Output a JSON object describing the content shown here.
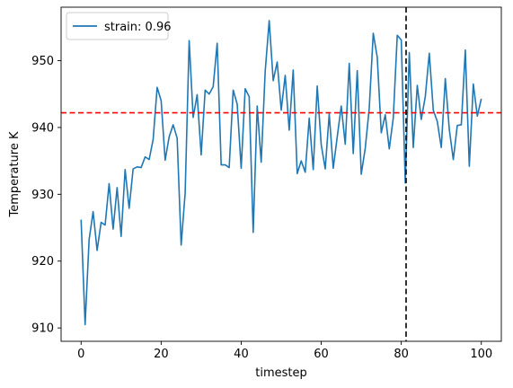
{
  "chart_data": {
    "type": "line",
    "title": "",
    "xlabel": "timestep",
    "ylabel": "Temperature K",
    "xlim": [
      -5,
      105
    ],
    "ylim": [
      908,
      958
    ],
    "xticks": [
      0,
      20,
      40,
      60,
      80,
      100
    ],
    "yticks": [
      910,
      920,
      930,
      940,
      950
    ],
    "grid": false,
    "legend_position": "top-left",
    "hline": {
      "y": 942.2,
      "color": "#ff0000",
      "style": "dashed"
    },
    "vline": {
      "x": 81.2,
      "color": "#000000",
      "style": "dashed"
    },
    "series": [
      {
        "name": "strain: 0.96",
        "color": "#1f77b4",
        "x": [
          0,
          1,
          2,
          3,
          4,
          5,
          6,
          7,
          8,
          9,
          10,
          11,
          12,
          13,
          14,
          15,
          16,
          17,
          18,
          19,
          20,
          21,
          22,
          23,
          24,
          25,
          26,
          27,
          28,
          29,
          30,
          31,
          32,
          33,
          34,
          35,
          36,
          37,
          38,
          39,
          40,
          41,
          42,
          43,
          44,
          45,
          46,
          47,
          48,
          49,
          50,
          51,
          52,
          53,
          54,
          55,
          56,
          57,
          58,
          59,
          60,
          61,
          62,
          63,
          64,
          65,
          66,
          67,
          68,
          69,
          70,
          71,
          72,
          73,
          74,
          75,
          76,
          77,
          78,
          79,
          80,
          81,
          82,
          83,
          84,
          85,
          86,
          87,
          88,
          89,
          90,
          91,
          92,
          93,
          94,
          95,
          96,
          97,
          98,
          99,
          100
        ],
        "values": [
          926.2,
          910.5,
          923.2,
          927.4,
          921.6,
          925.8,
          925.4,
          931.6,
          924.8,
          931.0,
          923.7,
          933.7,
          927.9,
          933.8,
          934.1,
          934.0,
          935.6,
          935.2,
          938.2,
          946.0,
          944.0,
          935.1,
          938.6,
          940.4,
          938.4,
          922.4,
          930.2,
          953.0,
          941.5,
          944.9,
          935.9,
          945.6,
          945.0,
          946.1,
          952.6,
          934.4,
          934.4,
          934.0,
          945.6,
          943.5,
          933.9,
          945.8,
          944.6,
          924.3,
          943.2,
          934.8,
          948.4,
          956.0,
          947.0,
          949.8,
          942.6,
          947.8,
          939.6,
          948.6,
          933.1,
          935.0,
          933.3,
          941.4,
          933.7,
          946.2,
          937.4,
          933.8,
          942.0,
          933.9,
          938.6,
          943.2,
          937.5,
          949.6,
          936.1,
          948.5,
          933.0,
          936.9,
          942.9,
          954.1,
          950.5,
          939.2,
          941.9,
          936.8,
          941.4,
          953.8,
          953.1,
          931.7,
          951.2,
          937.0,
          946.3,
          941.2,
          944.6,
          951.1,
          942.6,
          940.9,
          937.0,
          947.3,
          939.7,
          935.2,
          940.3,
          940.4,
          951.6,
          934.2,
          946.5,
          941.7,
          944.3
        ]
      }
    ]
  }
}
